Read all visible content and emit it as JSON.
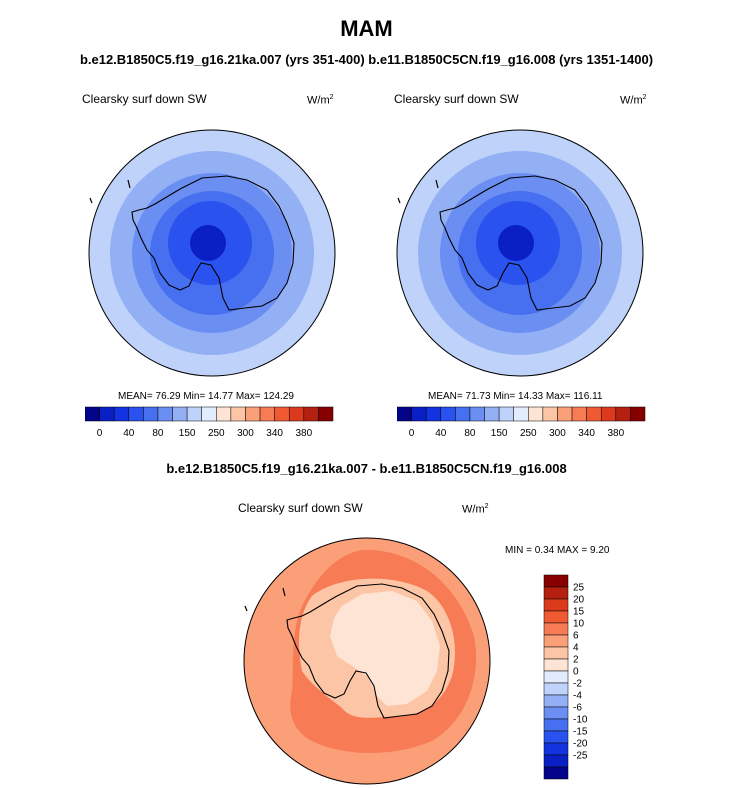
{
  "header": {
    "season": "MAM",
    "cases_line": "b.e12.B1850C5.f19_g16.21ka.007 (yrs 351-400) b.e11.B1850C5CN.f19_g16.008 (yrs 1351-1400)",
    "diff_title": "b.e12.B1850C5.f19_g16.21ka.007 - b.e11.B1850C5CN.f19_g16.008"
  },
  "panels": [
    {
      "variable": "Clearsky surf down SW",
      "units": "W/m",
      "units_sup": "2",
      "stats": "MEAN=  76.29  Min=  14.77  Max= 124.29"
    },
    {
      "variable": "Clearsky surf down SW",
      "units": "W/m",
      "units_sup": "2",
      "stats": "MEAN=  71.73  Min=  14.33  Max= 116.11"
    }
  ],
  "diff_panel": {
    "variable": "Clearsky surf down SW",
    "units": "W/m",
    "units_sup": "2",
    "stats": "MIN =   0.34 MAX =   9.20"
  },
  "abs_colorbar": {
    "colors": [
      "#04048a",
      "#0a1fc4",
      "#1433e0",
      "#2a52ee",
      "#4670f0",
      "#6a8ef2",
      "#93b0f5",
      "#bed2fa",
      "#e2ecfc",
      "#fde4d4",
      "#fcc6a6",
      "#fb9f78",
      "#f77c55",
      "#f05a32",
      "#dc3a1c",
      "#b32010",
      "#860000"
    ],
    "tick_labels": [
      "0",
      "40",
      "80",
      "150",
      "250",
      "300",
      "340",
      "380"
    ]
  },
  "diff_colorbar": {
    "colors": [
      "#860000",
      "#b32010",
      "#dc3a1c",
      "#f05a32",
      "#f77c55",
      "#fb9f78",
      "#fcc6a6",
      "#fde4d4",
      "#e2ecfc",
      "#bed2fa",
      "#93b0f5",
      "#6a8ef2",
      "#4670f0",
      "#2a52ee",
      "#1433e0",
      "#0a1fc4",
      "#04048a"
    ],
    "tick_labels": [
      "25",
      "20",
      "15",
      "10",
      "6",
      "4",
      "2",
      "0",
      "-2",
      "-4",
      "-6",
      "-10",
      "-15",
      "-20",
      "-25"
    ]
  },
  "map_colors": {
    "abs_rings": [
      "#bed2fa",
      "#93b0f5",
      "#6a8ef2",
      "#4670f0",
      "#2a52ee",
      "#0a1fc4"
    ],
    "diff_outer": "#fb9f78",
    "diff_mid": "#f77c55",
    "diff_inner": "#fcc6a6",
    "diff_center": "#fde4d4"
  }
}
